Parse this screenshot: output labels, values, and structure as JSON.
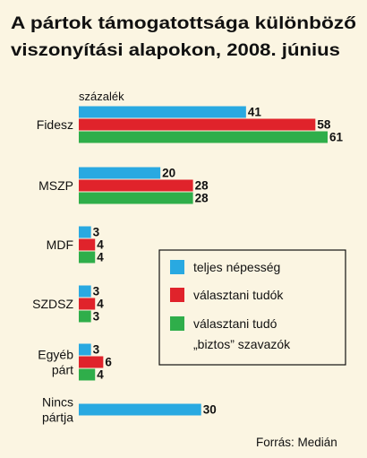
{
  "chart_data": {
    "type": "bar",
    "orientation": "horizontal",
    "title_lines": [
      "A pártok támogatottsága különböző",
      "viszonyítási alapokon, 2008. június"
    ],
    "unit_label": "százalék",
    "categories": [
      [
        "Fidesz"
      ],
      [
        "MSZP"
      ],
      [
        "MDF"
      ],
      [
        "SZDSZ"
      ],
      [
        "Egyéb",
        "párt"
      ],
      [
        "Nincs",
        "pártja"
      ]
    ],
    "series": [
      {
        "name": "teljes népesség",
        "color": "#29a9e1",
        "values": [
          41,
          20,
          3,
          3,
          3,
          30
        ]
      },
      {
        "name": "választani tudók",
        "color": "#e0232b",
        "values": [
          58,
          28,
          4,
          4,
          6,
          null
        ]
      },
      {
        "name_lines": [
          "választani tudó",
          "„biztos” szavazók"
        ],
        "color": "#2fae4a",
        "values": [
          61,
          28,
          4,
          3,
          4,
          null
        ]
      }
    ],
    "xlim": [
      0,
      61
    ],
    "grid": false,
    "legend_position": "right-middle",
    "source": "Forrás: Medián"
  }
}
